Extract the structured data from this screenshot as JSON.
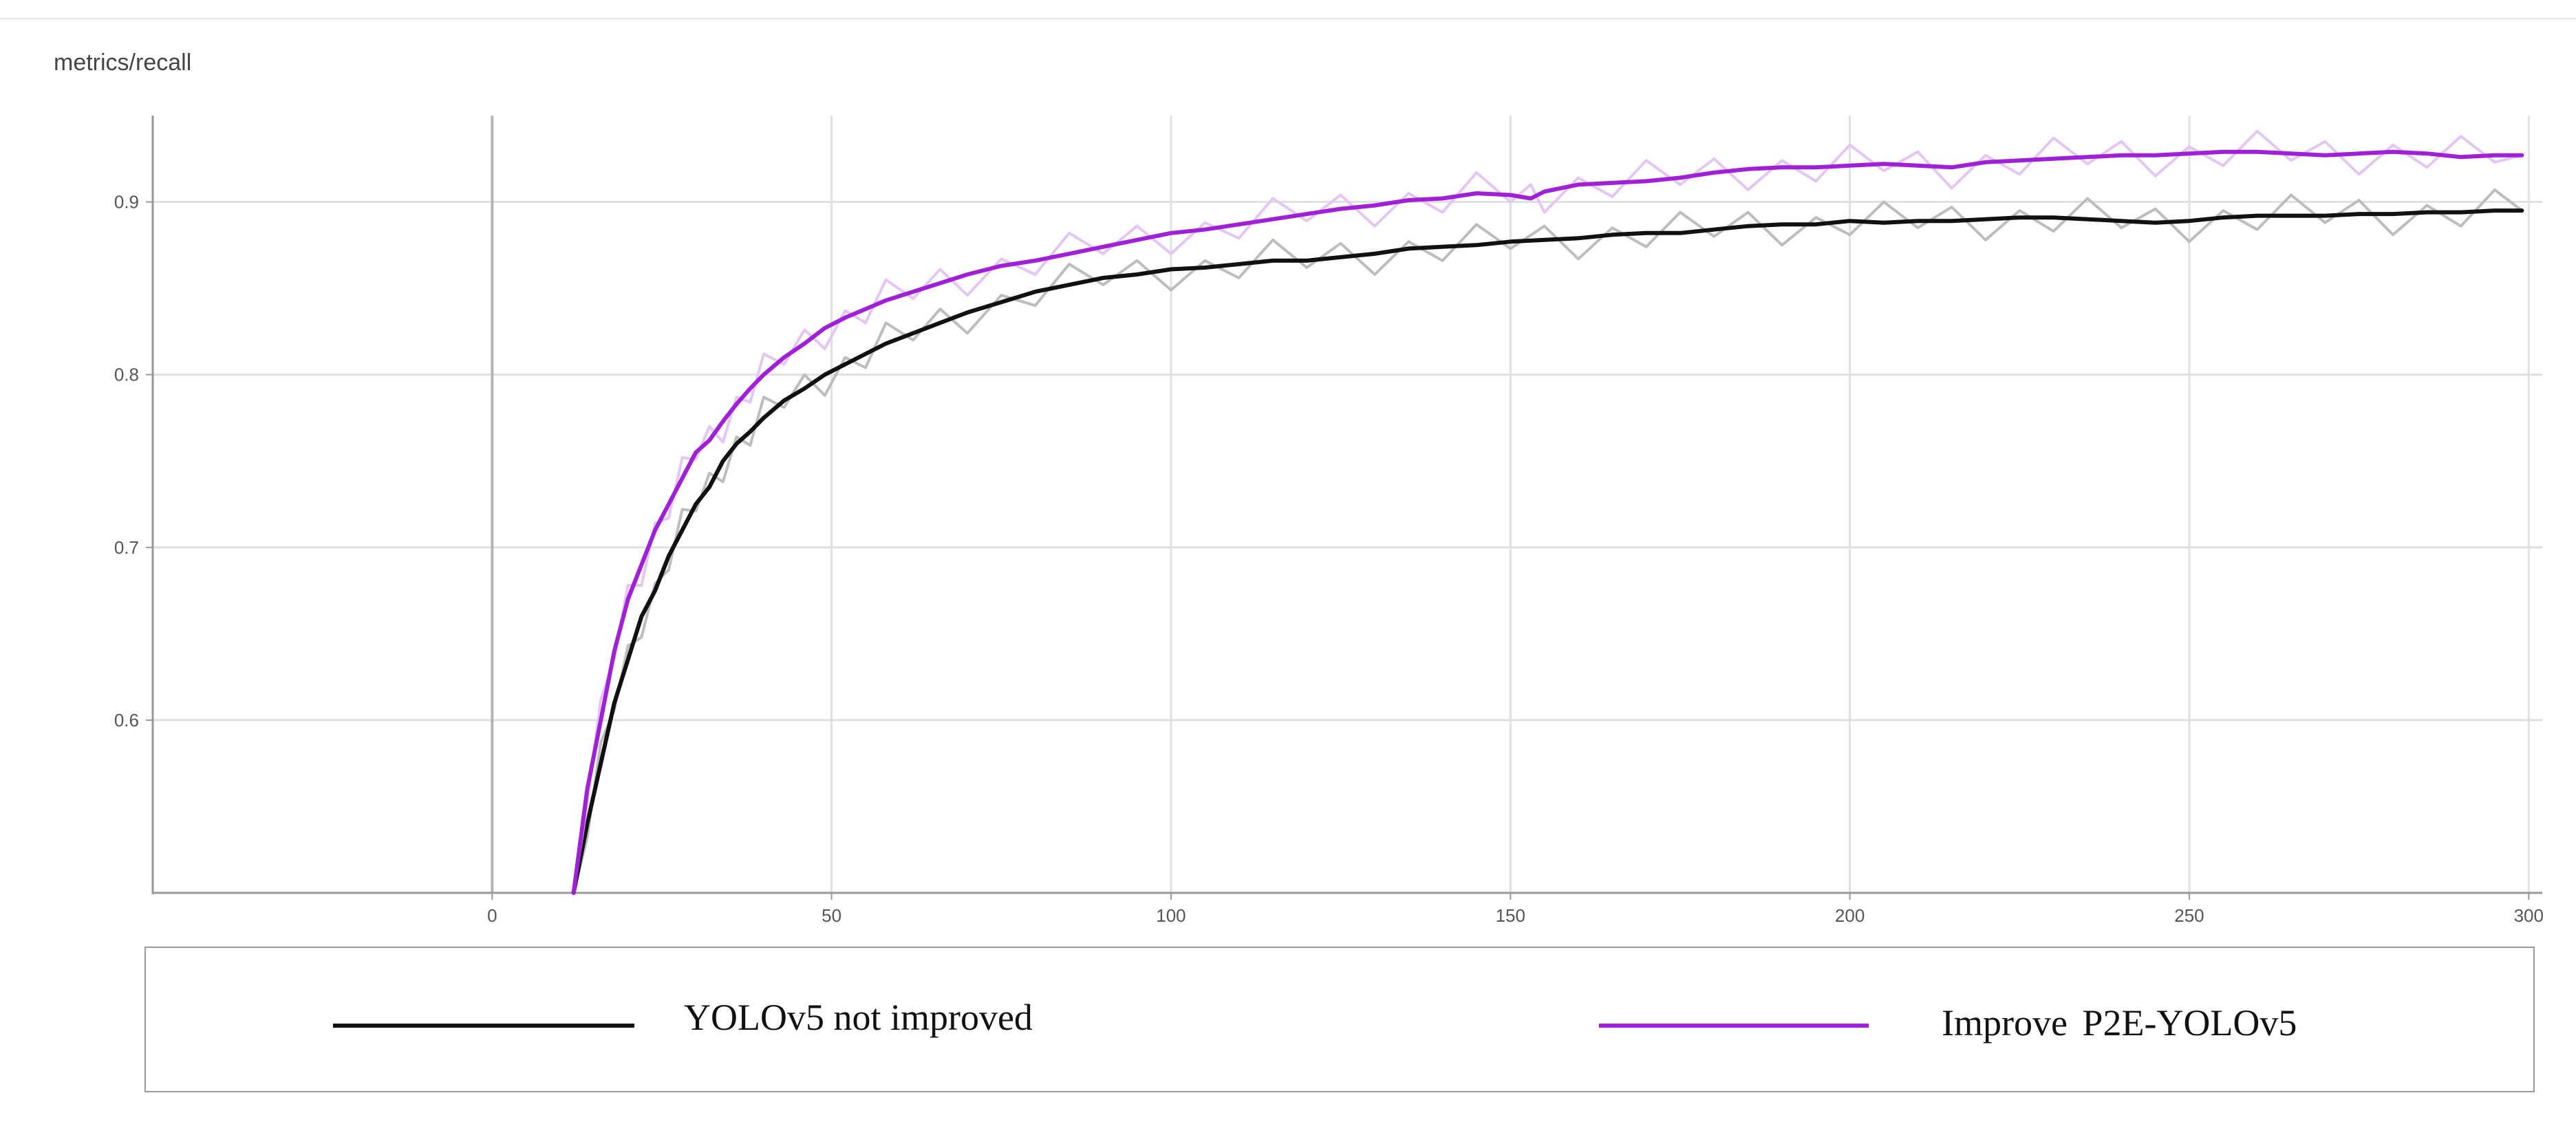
{
  "chart_data": {
    "type": "line",
    "title": "metrics/recall",
    "xlabel": "",
    "ylabel": "",
    "xlim": [
      -50,
      302
    ],
    "ylim": [
      0.5,
      0.95
    ],
    "x_ticks": [
      0,
      50,
      100,
      150,
      200,
      250,
      300
    ],
    "y_ticks": [
      0.6,
      0.7,
      0.8,
      0.9
    ],
    "grid": true,
    "legend": "bottom",
    "series": [
      {
        "name": "YOLOv5 not improved",
        "color": "#111111",
        "raw_color": "#bdbdbd",
        "x": [
          12,
          14,
          16,
          18,
          20,
          22,
          24,
          26,
          28,
          30,
          32,
          34,
          36,
          38,
          40,
          43,
          46,
          49,
          52,
          55,
          58,
          62,
          66,
          70,
          75,
          80,
          85,
          90,
          95,
          100,
          105,
          110,
          115,
          120,
          125,
          130,
          135,
          140,
          145,
          150,
          155,
          160,
          165,
          170,
          175,
          180,
          185,
          190,
          195,
          200,
          205,
          210,
          215,
          220,
          225,
          230,
          235,
          240,
          245,
          250,
          255,
          260,
          265,
          270,
          275,
          280,
          285,
          290,
          295,
          299
        ],
        "y": [
          0.5,
          0.54,
          0.575,
          0.61,
          0.635,
          0.66,
          0.675,
          0.695,
          0.71,
          0.725,
          0.735,
          0.75,
          0.76,
          0.767,
          0.775,
          0.785,
          0.792,
          0.8,
          0.806,
          0.812,
          0.818,
          0.824,
          0.83,
          0.836,
          0.842,
          0.848,
          0.852,
          0.856,
          0.858,
          0.861,
          0.862,
          0.864,
          0.866,
          0.866,
          0.868,
          0.87,
          0.873,
          0.874,
          0.875,
          0.877,
          0.878,
          0.879,
          0.881,
          0.882,
          0.882,
          0.884,
          0.886,
          0.887,
          0.887,
          0.889,
          0.888,
          0.889,
          0.889,
          0.89,
          0.891,
          0.891,
          0.89,
          0.889,
          0.888,
          0.889,
          0.891,
          0.892,
          0.892,
          0.892,
          0.893,
          0.893,
          0.894,
          0.894,
          0.895,
          0.895
        ]
      },
      {
        "name": "Improve  P2E-YOLOv5",
        "color": "#a020d8",
        "raw_color": "#e3c6f3",
        "x": [
          12,
          14,
          16,
          18,
          20,
          22,
          24,
          26,
          28,
          30,
          32,
          34,
          36,
          38,
          40,
          43,
          46,
          49,
          52,
          55,
          58,
          62,
          66,
          70,
          75,
          80,
          85,
          90,
          95,
          100,
          105,
          110,
          115,
          120,
          125,
          130,
          135,
          140,
          145,
          150,
          153,
          155,
          160,
          165,
          170,
          175,
          180,
          185,
          190,
          195,
          200,
          205,
          210,
          215,
          220,
          225,
          230,
          235,
          240,
          245,
          250,
          255,
          260,
          265,
          270,
          275,
          280,
          285,
          290,
          295,
          299
        ],
        "y": [
          0.5,
          0.56,
          0.6,
          0.64,
          0.67,
          0.69,
          0.71,
          0.725,
          0.74,
          0.755,
          0.762,
          0.773,
          0.783,
          0.792,
          0.8,
          0.81,
          0.818,
          0.827,
          0.833,
          0.838,
          0.843,
          0.848,
          0.853,
          0.858,
          0.863,
          0.866,
          0.87,
          0.874,
          0.878,
          0.882,
          0.884,
          0.887,
          0.89,
          0.893,
          0.896,
          0.898,
          0.901,
          0.902,
          0.905,
          0.904,
          0.902,
          0.906,
          0.91,
          0.911,
          0.912,
          0.914,
          0.917,
          0.919,
          0.92,
          0.92,
          0.921,
          0.922,
          0.921,
          0.92,
          0.923,
          0.924,
          0.925,
          0.926,
          0.927,
          0.927,
          0.928,
          0.929,
          0.929,
          0.928,
          0.927,
          0.928,
          0.929,
          0.928,
          0.926,
          0.927,
          0.927
        ]
      }
    ]
  }
}
